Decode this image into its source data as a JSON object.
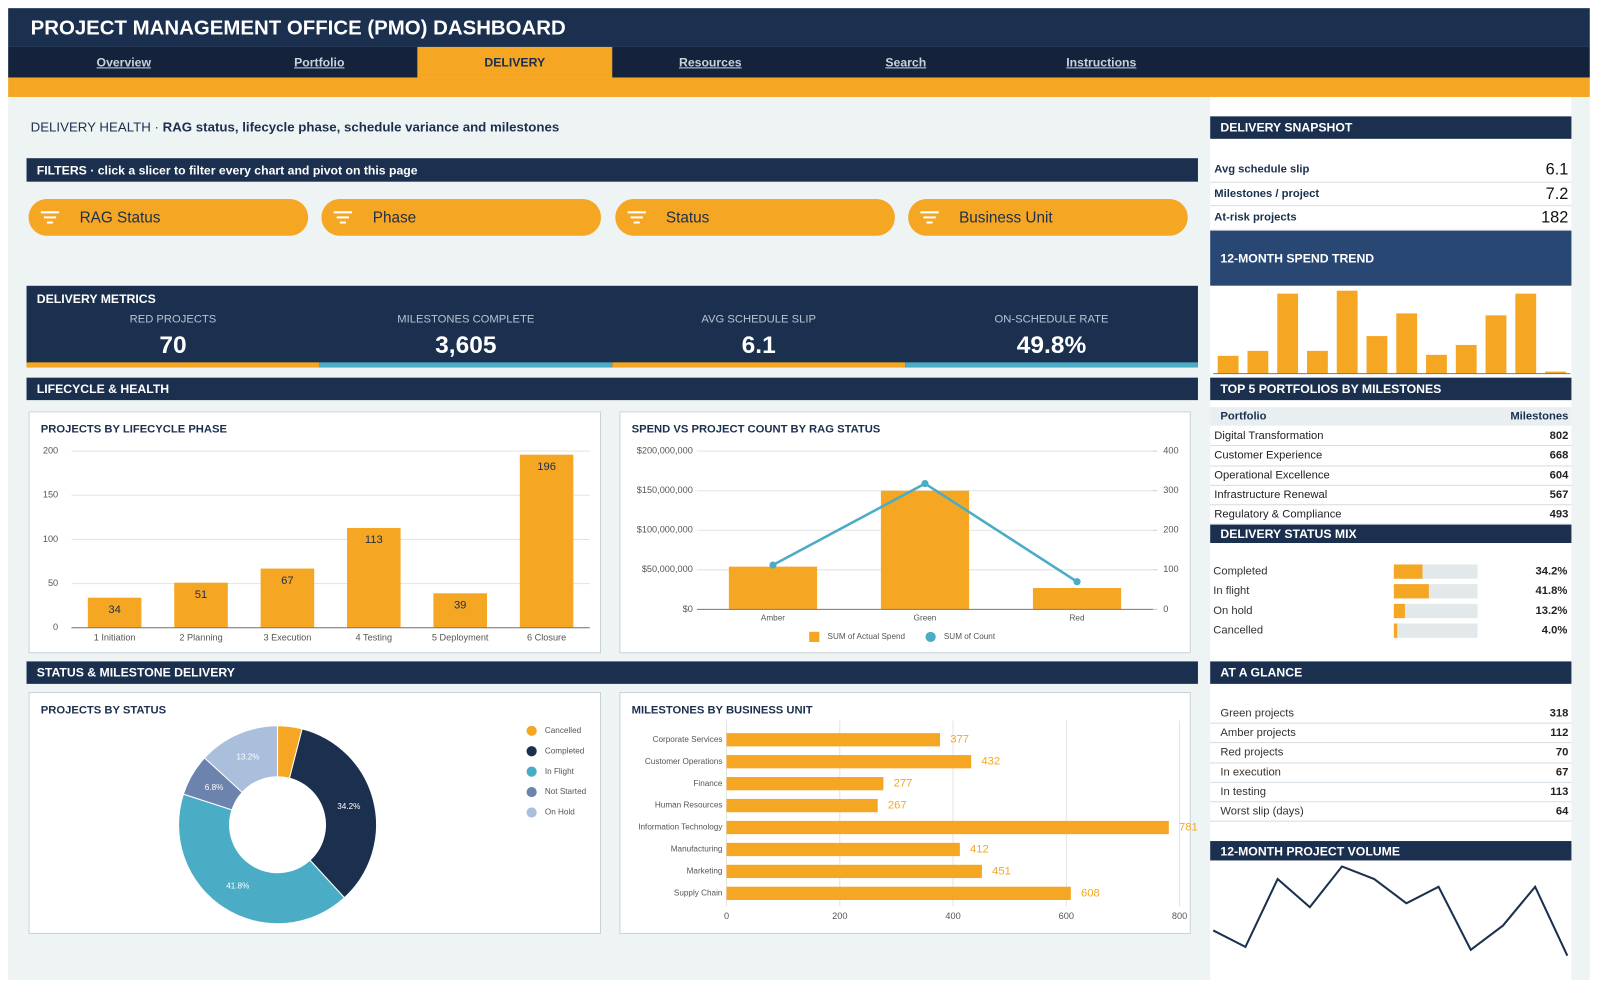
{
  "header": {
    "title": "PROJECT MANAGEMENT OFFICE (PMO) DASHBOARD"
  },
  "nav": {
    "items": [
      "Overview",
      "Portfolio",
      "DELIVERY",
      "Resources",
      "Search",
      "Instructions"
    ],
    "active": 2
  },
  "intro": {
    "heading": "DELIVERY HEALTH",
    "separator": "·",
    "subtitle": "RAG status, lifecycle phase, schedule variance and milestones"
  },
  "filters": {
    "title": "FILTERS",
    "separator": "·",
    "hint": "click a slicer to filter every chart and pivot on this page",
    "slicers": [
      "RAG Status",
      "Phase",
      "Status",
      "Business Unit"
    ]
  },
  "metrics": {
    "title": "DELIVERY METRICS",
    "items": [
      {
        "label": "RED PROJECTS",
        "value": "70",
        "color": "#f5a623"
      },
      {
        "label": "MILESTONES COMPLETE",
        "value": "3,605",
        "color": "#4bacc6"
      },
      {
        "label": "AVG SCHEDULE SLIP",
        "value": "6.1",
        "color": "#f5a623"
      },
      {
        "label": "ON-SCHEDULE RATE",
        "value": "49.8%",
        "color": "#4bacc6"
      }
    ]
  },
  "sections": [
    "LIFECYCLE & HEALTH",
    "STATUS & MILESTONE DELIVERY"
  ],
  "snapshot": {
    "title": "DELIVERY SNAPSHOT",
    "rows": [
      [
        "Avg schedule slip",
        "6.1"
      ],
      [
        "Milestones / project",
        "7.2"
      ],
      [
        "At-risk projects",
        "182"
      ]
    ]
  },
  "top5": {
    "title": "TOP 5 PORTFOLIOS BY MILESTONES",
    "columns": [
      "Portfolio",
      "Milestones"
    ],
    "rows": [
      [
        "Digital Transformation",
        "802"
      ],
      [
        "Customer Experience",
        "668"
      ],
      [
        "Operational Excellence",
        "604"
      ],
      [
        "Infrastructure Renewal",
        "567"
      ],
      [
        "Regulatory & Compliance",
        "493"
      ]
    ]
  },
  "glance": {
    "title": "AT A GLANCE",
    "rows": [
      [
        "Green projects",
        "318"
      ],
      [
        "Amber projects",
        "112"
      ],
      [
        "Red projects",
        "70"
      ],
      [
        "In execution",
        "67"
      ],
      [
        "In testing",
        "113"
      ],
      [
        "Worst slip (days)",
        "64"
      ]
    ]
  },
  "chart_data": [
    {
      "type": "bar",
      "title": "PROJECTS BY LIFECYCLE PHASE",
      "categories": [
        "1 Initiation",
        "2 Planning",
        "3 Execution",
        "4 Testing",
        "5 Deployment",
        "6 Closure"
      ],
      "values": [
        34,
        51,
        67,
        113,
        39,
        196
      ],
      "color": "#f5a623",
      "ylim": [
        0,
        200
      ],
      "yticks": [
        0,
        50,
        100,
        150,
        200
      ],
      "grid": true,
      "data_labels": true
    },
    {
      "type": "combo",
      "title": "SPEND VS PROJECT COUNT BY RAG STATUS",
      "categories": [
        "Amber",
        "Green",
        "Red"
      ],
      "series": [
        {
          "name": "SUM of Actual Spend",
          "type": "bar",
          "color": "#f5a623",
          "values": [
            54000000,
            150000000,
            27000000
          ]
        },
        {
          "name": "SUM of Count",
          "type": "line",
          "axis": "y2",
          "color": "#4bacc6",
          "values": [
            112,
            318,
            70
          ]
        }
      ],
      "ylim": [
        0,
        200000000
      ],
      "yticks": [
        {
          "value": 0,
          "label": "$0"
        },
        {
          "value": 50000000,
          "label": "$50,000,000"
        },
        {
          "value": 100000000,
          "label": "$100,000,000"
        },
        {
          "value": 150000000,
          "label": "$150,000,000"
        },
        {
          "value": 200000000,
          "label": "$200,000,000"
        }
      ],
      "y2lim": [
        0,
        400
      ],
      "y2ticks": [
        0,
        100,
        200,
        300,
        400
      ],
      "grid": true,
      "legend": "bottom"
    },
    {
      "type": "donut",
      "title": "PROJECTS BY STATUS",
      "categories": [
        "Cancelled",
        "Completed",
        "In Flight",
        "Not Started",
        "On Hold"
      ],
      "values": [
        4.0,
        34.2,
        41.8,
        6.8,
        13.2
      ],
      "value_labels": [
        null,
        "34.2%",
        "41.8%",
        "6.8%",
        "13.2%"
      ],
      "colors": [
        "#f5a623",
        "#1b2f4e",
        "#4bacc6",
        "#6b83ad",
        "#a9bfdc"
      ],
      "legend": "right"
    },
    {
      "type": "hbar",
      "title": "MILESTONES BY BUSINESS UNIT",
      "categories": [
        "Corporate Services",
        "Customer Operations",
        "Finance",
        "Human Resources",
        "Information Technology",
        "Manufacturing",
        "Marketing",
        "Supply Chain"
      ],
      "values": [
        377,
        432,
        277,
        267,
        781,
        412,
        451,
        608
      ],
      "color": "#f5a623",
      "xlim": [
        0,
        800
      ],
      "xticks": [
        0,
        200,
        400,
        600,
        800
      ],
      "grid": true,
      "data_labels": true
    },
    {
      "type": "bar",
      "title": "12-MONTH SPEND TREND",
      "values": [
        18,
        23,
        81,
        23,
        84,
        38,
        61,
        19,
        29,
        59,
        81,
        2
      ],
      "color": "#f5a623",
      "ylim": [
        0,
        90
      ]
    },
    {
      "type": "progress",
      "title": "DELIVERY STATUS MIX",
      "categories": [
        "Completed",
        "In flight",
        "On hold",
        "Cancelled"
      ],
      "values": [
        34.2,
        41.8,
        13.2,
        4.0
      ],
      "value_labels": [
        "34.2%",
        "41.8%",
        "13.2%",
        "4.0%"
      ],
      "color": "#f5a623",
      "track": "#e3e8eb",
      "xlim": [
        0,
        100
      ]
    },
    {
      "type": "line",
      "title": "12-MONTH PROJECT VOLUME",
      "values": [
        31,
        14,
        84,
        55,
        97,
        84,
        59,
        76,
        11,
        36,
        76,
        5
      ],
      "color": "#1b2f4e",
      "ylim": [
        0,
        100
      ]
    }
  ]
}
